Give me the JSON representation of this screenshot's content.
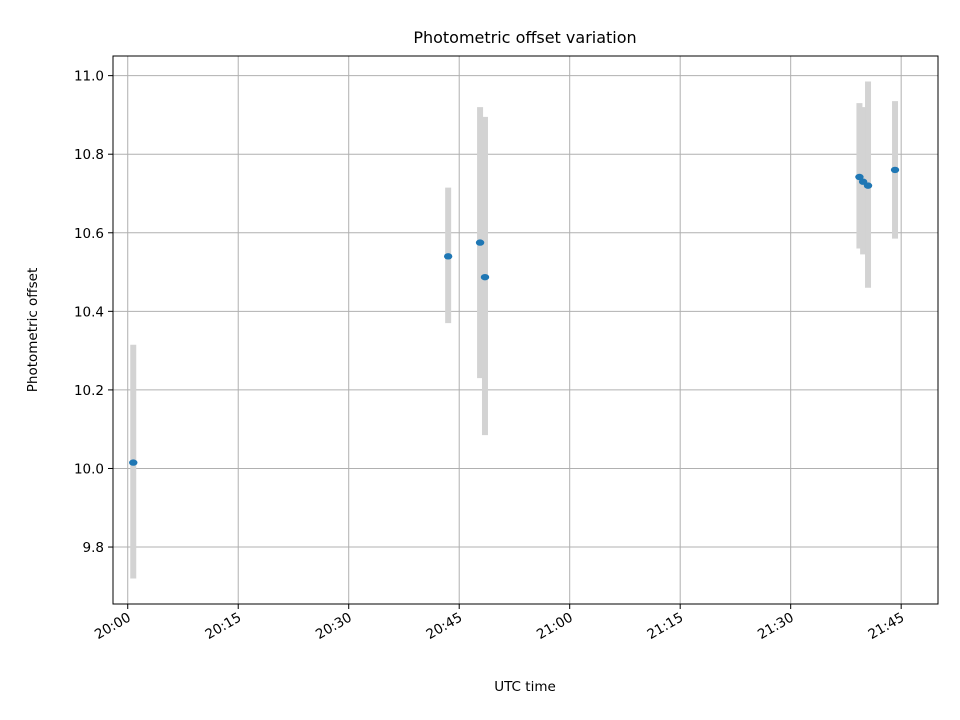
{
  "chart_data": {
    "type": "scatter",
    "title": "Photometric offset variation",
    "xlabel": "UTC time",
    "ylabel": "Photometric offset",
    "x_unit": "time",
    "xlim": [
      "19:58",
      "21:50"
    ],
    "ylim": [
      9.655,
      11.05
    ],
    "x_ticks": [
      "20:00",
      "20:15",
      "20:30",
      "20:45",
      "21:00",
      "21:15",
      "21:30",
      "21:45"
    ],
    "y_ticks": [
      "9.8",
      "10.0",
      "10.2",
      "10.4",
      "10.6",
      "10.8",
      "11.0"
    ],
    "y_tick_values": [
      9.8,
      10.0,
      10.2,
      10.4,
      10.6,
      10.8,
      11.0
    ],
    "grid": true,
    "colors": {
      "point": "#1f77b4",
      "error_bar": "#d3d3d3",
      "grid": "#b0b0b0"
    },
    "series": [
      {
        "points": [
          {
            "x": "20:00:45",
            "y": 10.015,
            "yerr_low": 9.72,
            "yerr_high": 10.315
          },
          {
            "x": "20:43:30",
            "y": 10.54,
            "yerr_low": 10.37,
            "yerr_high": 10.715
          },
          {
            "x": "20:47:50",
            "y": 10.575,
            "yerr_low": 10.23,
            "yerr_high": 10.92
          },
          {
            "x": "20:48:30",
            "y": 10.487,
            "yerr_low": 10.085,
            "yerr_high": 10.895
          },
          {
            "x": "21:39:20",
            "y": 10.742,
            "yerr_low": 10.56,
            "yerr_high": 10.93
          },
          {
            "x": "21:39:50",
            "y": 10.73,
            "yerr_low": 10.545,
            "yerr_high": 10.92
          },
          {
            "x": "21:40:30",
            "y": 10.72,
            "yerr_low": 10.46,
            "yerr_high": 10.985
          },
          {
            "x": "21:44:10",
            "y": 10.76,
            "yerr_low": 10.585,
            "yerr_high": 10.935
          }
        ]
      }
    ]
  }
}
